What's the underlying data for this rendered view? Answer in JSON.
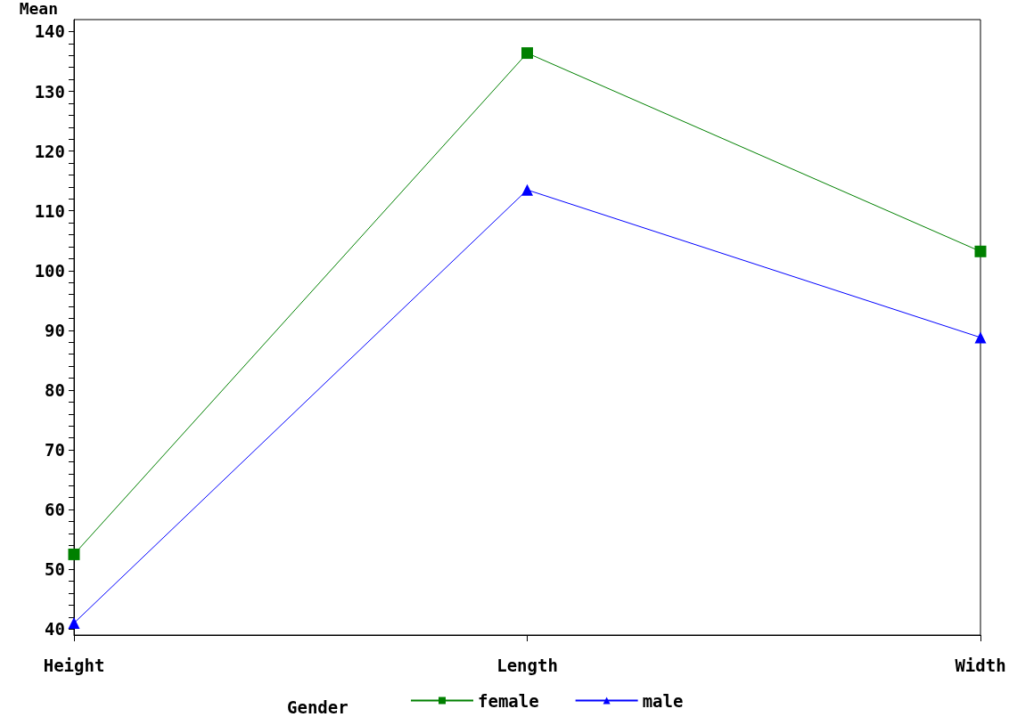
{
  "chart_data": {
    "type": "line",
    "ylabel": "Mean",
    "legend_title": "Gender",
    "categories": [
      "Height",
      "Length",
      "Width"
    ],
    "series": [
      {
        "name": "female",
        "color": "#008000",
        "marker": "square",
        "values": [
          52.5,
          136.4,
          103.2
        ]
      },
      {
        "name": "male",
        "color": "#0000ff",
        "marker": "triangle",
        "values": [
          41,
          113.5,
          88.8
        ]
      }
    ],
    "ylim": [
      39,
      142
    ],
    "yticks": [
      40,
      {
        "value": 42,
        "label": null
      },
      {
        "value": 44,
        "label": null
      },
      {
        "value": 46,
        "label": null
      },
      {
        "value": 48,
        "label": null
      },
      50,
      {
        "value": 52,
        "label": null
      },
      {
        "value": 54,
        "label": null
      },
      {
        "value": 56,
        "label": null
      },
      {
        "value": 58,
        "label": null
      },
      60,
      {
        "value": 62,
        "label": null
      },
      {
        "value": 64,
        "label": null
      },
      {
        "value": 66,
        "label": null
      },
      {
        "value": 68,
        "label": null
      },
      70,
      {
        "value": 72,
        "label": null
      },
      {
        "value": 74,
        "label": null
      },
      {
        "value": 76,
        "label": null
      },
      {
        "value": 78,
        "label": null
      },
      80,
      {
        "value": 82,
        "label": null
      },
      {
        "value": 84,
        "label": null
      },
      {
        "value": 86,
        "label": null
      },
      {
        "value": 88,
        "label": null
      },
      90,
      {
        "value": 92,
        "label": null
      },
      {
        "value": 94,
        "label": null
      },
      {
        "value": 96,
        "label": null
      },
      {
        "value": 98,
        "label": null
      },
      100,
      {
        "value": 102,
        "label": null
      },
      {
        "value": 104,
        "label": null
      },
      {
        "value": 106,
        "label": null
      },
      {
        "value": 108,
        "label": null
      },
      110,
      {
        "value": 112,
        "label": null
      },
      {
        "value": 114,
        "label": null
      },
      {
        "value": 116,
        "label": null
      },
      {
        "value": 118,
        "label": null
      },
      120,
      {
        "value": 122,
        "label": null
      },
      {
        "value": 124,
        "label": null
      },
      {
        "value": 126,
        "label": null
      },
      {
        "value": 128,
        "label": null
      },
      130,
      {
        "value": 132,
        "label": null
      },
      {
        "value": 134,
        "label": null
      },
      {
        "value": 136,
        "label": null
      },
      {
        "value": 138,
        "label": null
      },
      140
    ],
    "grid": false,
    "legend": "bottom",
    "line_style": "solid"
  }
}
